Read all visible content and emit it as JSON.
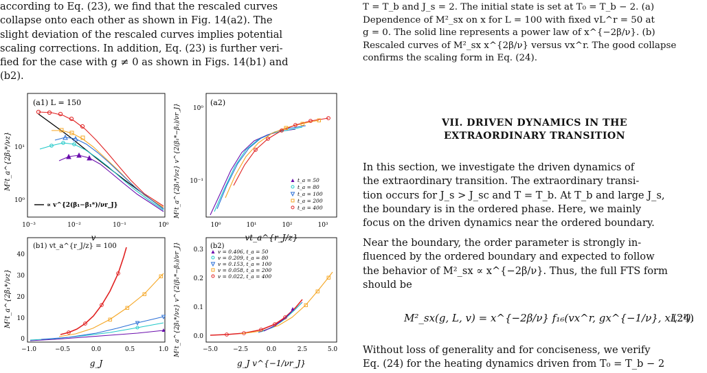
{
  "left_column": {
    "intro_lines": [
      "according to Eq. (23), we find that the rescaled curves",
      "collapse onto each other as shown in Fig. 14(a2). The",
      "slight deviation of the rescaled curves implies potential",
      "scaling corrections. In addition, Eq. (23) is further veri-",
      "fied for the case with g ≠ 0 as shown in Figs. 14(b1) and",
      "(b2)."
    ]
  },
  "figure": {
    "panel_a1": {
      "label": "(a1) L = 150",
      "ylabel": "M²t_a^{2β₁*/νz}",
      "xlabel": "v",
      "x_ticks": [
        "10⁻³",
        "10⁻²",
        "10⁻¹",
        "10⁰"
      ],
      "y_ticks": [
        "10⁰",
        "10¹"
      ],
      "legend_line": "∝ v^{2(β₁−β₁*)/νr_J}"
    },
    "panel_a2": {
      "label": "(a2)",
      "ylabel": "M²t_a^{2β₁*/νz} v^{2(β₁*−β₁)/νr_J}",
      "xlabel": "vt_a^{r_J/z}",
      "x_ticks": [
        "10⁰",
        "10¹",
        "10²",
        "10³"
      ],
      "y_ticks": [
        "10⁻¹",
        "10⁰"
      ],
      "legend": [
        "t_a = 50",
        "t_a = 80",
        "t_a = 100",
        "t_a = 200",
        "t_a = 400"
      ]
    },
    "panel_b1": {
      "label": "(b1) vt_a^{r_J/z} = 100",
      "ylabel": "M²t_a^{2β₁*/νz}",
      "xlabel": "g_J",
      "x_ticks": [
        "−1.0",
        "−0.5",
        "0.0",
        "0.5",
        "1.0"
      ],
      "y_ticks": [
        "0",
        "10",
        "20",
        "30",
        "40"
      ]
    },
    "panel_b2": {
      "label": "(b2)",
      "ylabel": "M²t_a^{2β₁*/νz} v^{2(β₁*−β₁)/νr_J}",
      "xlabel": "g_J v^{−1/νr_J}",
      "x_ticks": [
        "−5.0",
        "−2.5",
        "0.0",
        "2.5",
        "5.0"
      ],
      "y_ticks": [
        "0.0",
        "0.1",
        "0.2",
        "0.3"
      ],
      "legend": [
        "v = 0.406, t_a = 50",
        "v = 0.209, t_a = 80",
        "v = 0.153, t_a = 100",
        "v = 0.058, t_a = 200",
        "v = 0.022, t_a = 400"
      ]
    },
    "series_colors": [
      "#6a0dad",
      "#1ec8c8",
      "#2a6fd6",
      "#f5a623",
      "#e02020"
    ]
  },
  "right_column": {
    "caption_lines": [
      "T = T_b and J_s = 2. The initial state is set at T₀ = T_b − 2. (a)",
      "Dependence of M²_sx on x for L = 100 with fixed vL^r = 50 at",
      "g = 0. The solid line represents a power law of x^{−2β/ν}. (b)",
      "Rescaled curves of M²_sx x^{2β/ν} versus vx^r. The good collapse",
      "confirms the scaling form in Eq. (24)."
    ],
    "section_heading_line1": "VII.   DRIVEN DYNAMICS IN THE",
    "section_heading_line2": "EXTRAORDINARY TRANSITION",
    "para1_lines": [
      "In this section, we investigate the driven dynamics of",
      "the extraordinary transition. The extraordinary transi-",
      "tion occurs for J_s > J_sc and T = T_b. At T_b and large J_s,",
      "the boundary is in the ordered phase. Here, we mainly",
      "focus on the driven dynamics near the ordered boundary."
    ],
    "para2_lines": [
      "Near the boundary, the order parameter is strongly in-",
      "fluenced by the ordered boundary and expected to follow",
      "the behavior of M²_sx ∝ x^{−2β/ν}. Thus, the full FTS form",
      "should be"
    ],
    "equation": "M²_sx(g, L, v) = x^{−2β/ν} f₁₆(vx^r, gx^{−1/ν}, xL⁻¹).",
    "equation_number": "(24)",
    "para3_lines": [
      "Without loss of generality and for conciseness, we verify",
      "Eq. (24) for the heating dynamics driven from T₀ = T_b − 2"
    ]
  }
}
